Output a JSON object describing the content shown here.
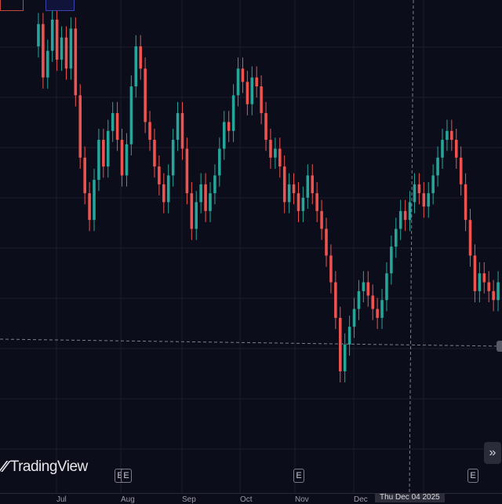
{
  "brand": {
    "logo_glyph": "⁄⁄",
    "name": "TradingView"
  },
  "colors": {
    "background": "#0c0d1a",
    "grid": "#1b1c2b",
    "up": "#26a69a",
    "down": "#ef5350",
    "crosshair": "#7d7f8c"
  },
  "time_axis": {
    "labels": [
      "Jul",
      "Aug",
      "Sep",
      "Oct",
      "Nov",
      "Dec"
    ],
    "crosshair_date": "Thu Dec 04 2025"
  },
  "events": [
    {
      "label": "E"
    },
    {
      "label": "E"
    },
    {
      "label": "E"
    },
    {
      "label": "E"
    }
  ],
  "nav_button": {
    "glyph": "»",
    "icon": "double-chevron-right-icon"
  },
  "chart_data": {
    "type": "candlestick",
    "title": "",
    "xlabel": "",
    "ylabel": "",
    "y_range": [
      0,
      100
    ],
    "grid": true,
    "candles_open_close": [
      [
        91,
        96
      ],
      [
        96,
        84
      ],
      [
        84,
        90
      ],
      [
        90,
        97
      ],
      [
        97,
        88
      ],
      [
        88,
        93
      ],
      [
        93,
        86
      ],
      [
        86,
        95
      ],
      [
        95,
        80
      ],
      [
        80,
        66
      ],
      [
        66,
        58
      ],
      [
        58,
        52
      ],
      [
        52,
        61
      ],
      [
        61,
        70
      ],
      [
        70,
        64
      ],
      [
        64,
        72
      ],
      [
        72,
        76
      ],
      [
        76,
        70
      ],
      [
        70,
        62
      ],
      [
        62,
        69
      ],
      [
        69,
        82
      ],
      [
        82,
        91
      ],
      [
        91,
        86
      ],
      [
        86,
        74
      ],
      [
        74,
        70
      ],
      [
        70,
        64
      ],
      [
        64,
        60
      ],
      [
        60,
        56
      ],
      [
        56,
        62
      ],
      [
        62,
        70
      ],
      [
        70,
        76
      ],
      [
        76,
        68
      ],
      [
        68,
        58
      ],
      [
        58,
        50
      ],
      [
        50,
        56
      ],
      [
        56,
        60
      ],
      [
        60,
        54
      ],
      [
        54,
        58
      ],
      [
        58,
        62
      ],
      [
        62,
        68
      ],
      [
        68,
        74
      ],
      [
        74,
        72
      ],
      [
        72,
        80
      ],
      [
        80,
        86
      ],
      [
        86,
        83
      ],
      [
        83,
        78
      ],
      [
        78,
        84
      ],
      [
        84,
        82
      ],
      [
        82,
        76
      ],
      [
        76,
        70
      ],
      [
        70,
        66
      ],
      [
        66,
        68
      ],
      [
        68,
        64
      ],
      [
        64,
        56
      ],
      [
        56,
        60
      ],
      [
        60,
        58
      ],
      [
        58,
        54
      ],
      [
        54,
        57
      ],
      [
        57,
        62
      ],
      [
        62,
        58
      ],
      [
        58,
        54
      ],
      [
        54,
        50
      ],
      [
        50,
        44
      ],
      [
        44,
        38
      ],
      [
        38,
        30
      ],
      [
        30,
        18
      ],
      [
        18,
        24
      ],
      [
        24,
        28
      ],
      [
        28,
        32
      ],
      [
        32,
        36
      ],
      [
        36,
        38
      ],
      [
        38,
        35
      ],
      [
        35,
        32
      ],
      [
        32,
        30
      ],
      [
        30,
        34
      ],
      [
        34,
        40
      ],
      [
        40,
        46
      ],
      [
        46,
        50
      ],
      [
        50,
        54
      ],
      [
        54,
        52
      ],
      [
        52,
        56
      ],
      [
        56,
        60
      ],
      [
        60,
        58
      ],
      [
        58,
        55
      ],
      [
        55,
        58
      ],
      [
        58,
        62
      ],
      [
        62,
        66
      ],
      [
        66,
        70
      ],
      [
        70,
        72
      ],
      [
        72,
        70
      ],
      [
        70,
        66
      ],
      [
        66,
        60
      ],
      [
        60,
        52
      ],
      [
        52,
        44
      ],
      [
        44,
        36
      ],
      [
        36,
        40
      ],
      [
        40,
        38
      ],
      [
        38,
        36
      ],
      [
        36,
        34
      ],
      [
        34,
        38
      ]
    ],
    "last_price_ratio": 0.31
  }
}
